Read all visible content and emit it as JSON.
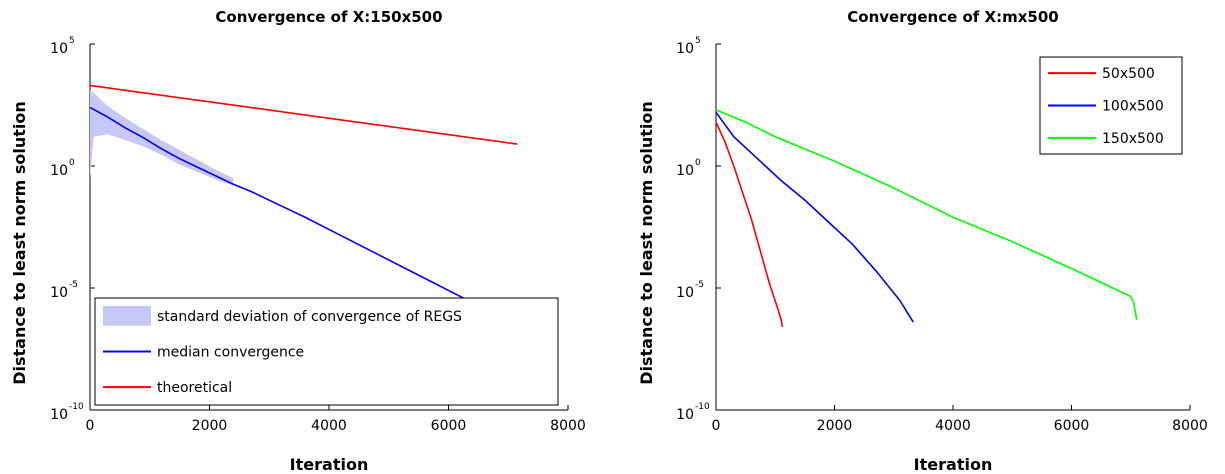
{
  "chart_data": [
    {
      "type": "line",
      "title": "Convergence of X:150x500",
      "xlabel": "Iteration",
      "ylabel": "Distance to least norm solution",
      "xlim": [
        0,
        8000
      ],
      "ylim_log10": [
        -10,
        5
      ],
      "yscale": "log",
      "x_ticks": [
        "0",
        "2000",
        "4000",
        "6000",
        "8000"
      ],
      "y_ticks": [
        {
          "base": "10",
          "exp": "5"
        },
        {
          "base": "10",
          "exp": "0"
        },
        {
          "base": "10",
          "exp": "-5"
        },
        {
          "base": "10",
          "exp": "-10"
        }
      ],
      "legend_position": "bottom-left",
      "band": {
        "name": "standard deviation of convergence of REGS",
        "color": "#c8c8f8",
        "x": [
          0,
          60,
          300,
          600,
          900,
          1200,
          1500,
          1800,
          2100,
          2400
        ],
        "lower_log10": [
          -0.5,
          1.2,
          1.3,
          1.05,
          0.8,
          0.45,
          0.05,
          -0.25,
          -0.55,
          -0.8
        ],
        "upper_log10": [
          3.1,
          3.0,
          2.45,
          1.95,
          1.5,
          1.05,
          0.65,
          0.25,
          -0.15,
          -0.5
        ]
      },
      "series": [
        {
          "name": "median convergence",
          "color": "#0000ff",
          "x": [
            0,
            300,
            600,
            900,
            1200,
            1500,
            1800,
            2100,
            2400,
            2700,
            3000,
            3600,
            4200,
            4800,
            5400,
            6000,
            6600,
            6800
          ],
          "y_log10": [
            2.4,
            2.0,
            1.55,
            1.15,
            0.7,
            0.3,
            -0.05,
            -0.4,
            -0.75,
            -1.05,
            -1.4,
            -2.1,
            -2.85,
            -3.6,
            -4.35,
            -5.1,
            -5.85,
            -6.1
          ]
        },
        {
          "name": "theoretical",
          "color": "#ff0000",
          "x": [
            0,
            7150
          ],
          "y_log10": [
            3.3,
            0.9
          ]
        }
      ]
    },
    {
      "type": "line",
      "title": "Convergence of X:mx500",
      "xlabel": "Iteration",
      "ylabel": "Distance to least norm solution",
      "xlim": [
        0,
        8000
      ],
      "ylim_log10": [
        -10,
        5
      ],
      "yscale": "log",
      "x_ticks": [
        "0",
        "2000",
        "4000",
        "6000",
        "8000"
      ],
      "y_ticks": [
        {
          "base": "10",
          "exp": "5"
        },
        {
          "base": "10",
          "exp": "0"
        },
        {
          "base": "10",
          "exp": "-5"
        },
        {
          "base": "10",
          "exp": "-10"
        }
      ],
      "legend_position": "top-right",
      "series": [
        {
          "name": "50x500",
          "color": "#ff0000",
          "x": [
            0,
            150,
            300,
            450,
            600,
            750,
            900,
            1050,
            1100,
            1120
          ],
          "y_log10": [
            1.8,
            1.0,
            0.0,
            -1.1,
            -2.2,
            -3.5,
            -4.8,
            -5.9,
            -6.3,
            -6.6
          ]
        },
        {
          "name": "100x500",
          "color": "#0000ff",
          "x": [
            0,
            300,
            700,
            1100,
            1500,
            1900,
            2300,
            2700,
            3100,
            3330
          ],
          "y_log10": [
            2.2,
            1.2,
            0.3,
            -0.6,
            -1.4,
            -2.3,
            -3.2,
            -4.3,
            -5.5,
            -6.4
          ]
        },
        {
          "name": "150x500",
          "color": "#00ff00",
          "x": [
            0,
            500,
            1000,
            2000,
            3000,
            4000,
            5000,
            6000,
            7000,
            7050,
            7100
          ],
          "y_log10": [
            2.3,
            1.8,
            1.2,
            0.2,
            -0.9,
            -2.1,
            -3.1,
            -4.2,
            -5.35,
            -5.6,
            -6.3
          ]
        }
      ]
    }
  ]
}
